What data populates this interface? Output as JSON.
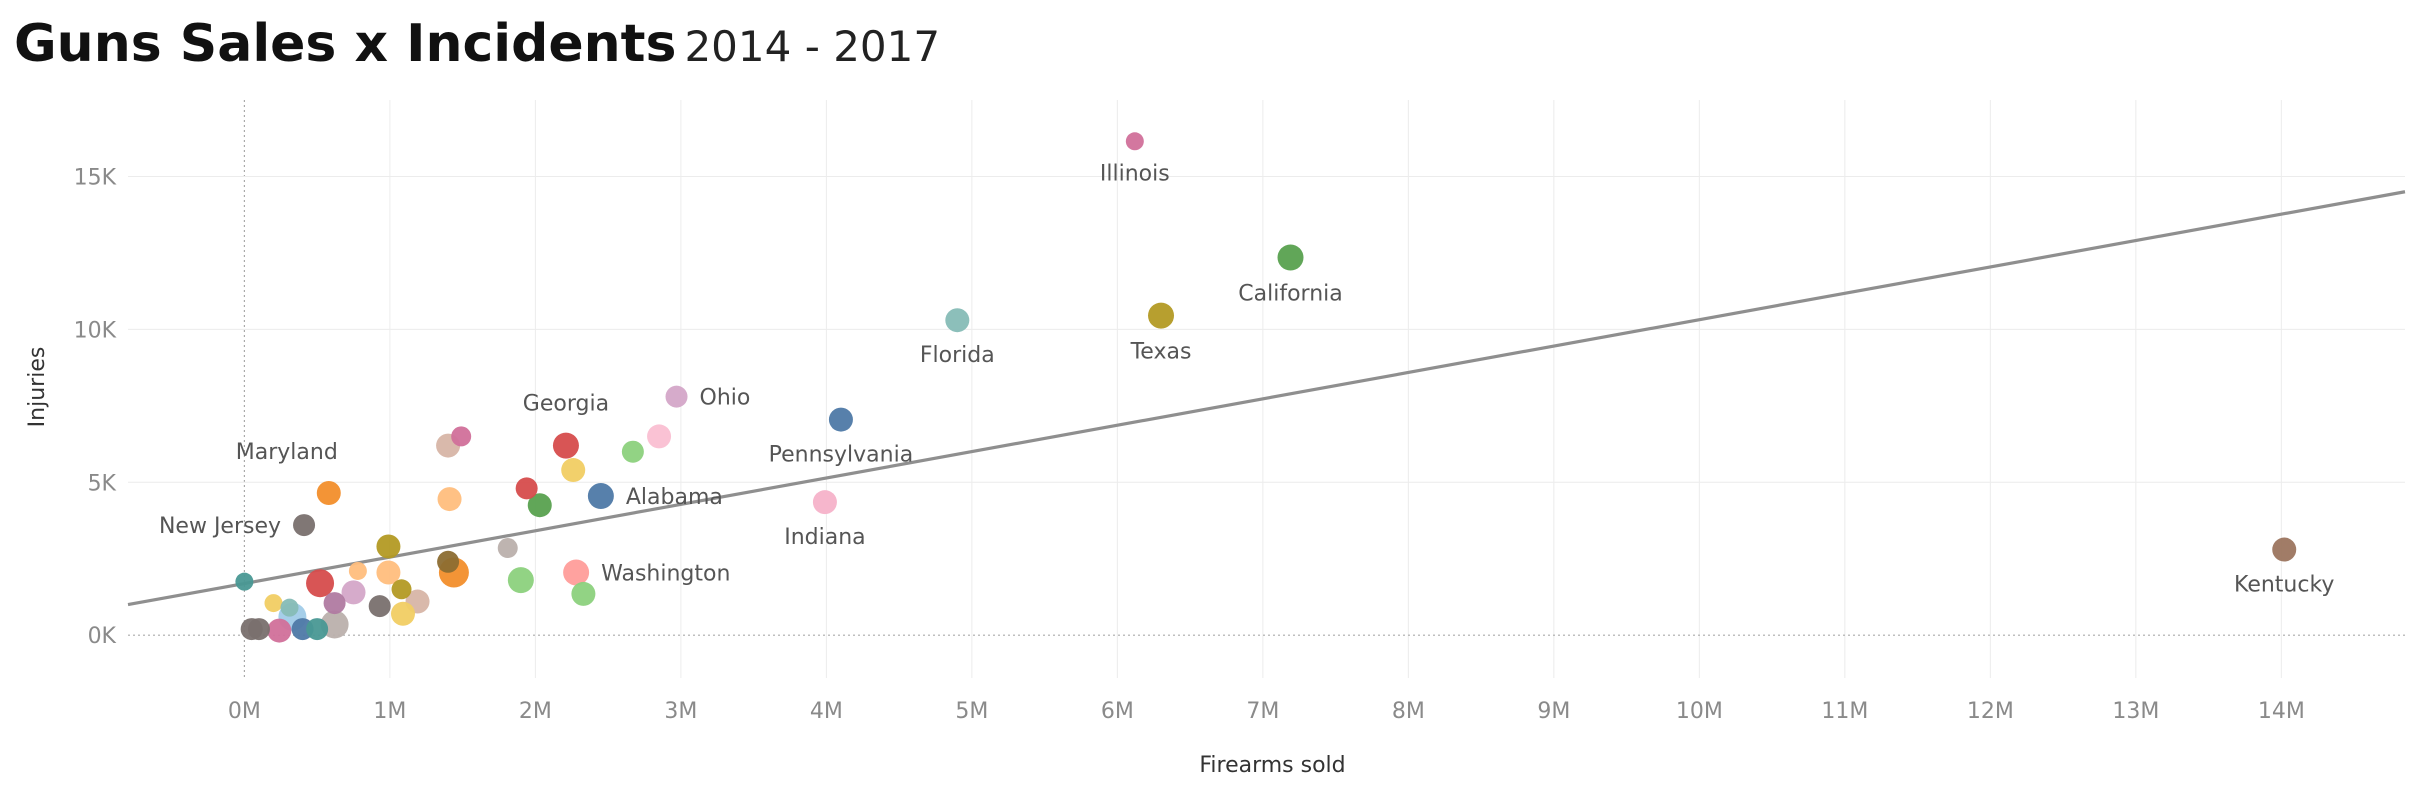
{
  "header": {
    "title": "Guns Sales x Incidents",
    "subtitle": "2014 - 2017"
  },
  "chart_data": {
    "type": "scatter",
    "title": "Guns Sales x Incidents",
    "subtitle": "2014 - 2017",
    "xlabel": "Firearms sold",
    "ylabel": "Injuries",
    "xlim": [
      -0.8,
      14.85
    ],
    "ylim": [
      -1400,
      17500
    ],
    "x_unit": "M",
    "y_unit": "K",
    "x_ticks": [
      {
        "value": 0,
        "label": "0M"
      },
      {
        "value": 1,
        "label": "1M"
      },
      {
        "value": 2,
        "label": "2M"
      },
      {
        "value": 3,
        "label": "3M"
      },
      {
        "value": 4,
        "label": "4M"
      },
      {
        "value": 5,
        "label": "5M"
      },
      {
        "value": 6,
        "label": "6M"
      },
      {
        "value": 7,
        "label": "7M"
      },
      {
        "value": 8,
        "label": "8M"
      },
      {
        "value": 9,
        "label": "9M"
      },
      {
        "value": 10,
        "label": "10M"
      },
      {
        "value": 11,
        "label": "11M"
      },
      {
        "value": 12,
        "label": "12M"
      },
      {
        "value": 13,
        "label": "13M"
      },
      {
        "value": 14,
        "label": "14M"
      }
    ],
    "y_ticks": [
      {
        "value": 0,
        "label": "0K"
      },
      {
        "value": 5000,
        "label": "5K"
      },
      {
        "value": 10000,
        "label": "10K"
      },
      {
        "value": 15000,
        "label": "15K"
      }
    ],
    "grid": true,
    "trend_line": {
      "x": [
        -0.8,
        14.85
      ],
      "y": [
        1000,
        14500
      ],
      "color": "#8f8f8f"
    },
    "points": [
      {
        "label": "Illinois",
        "x": 6.12,
        "y": 16150,
        "size": 9,
        "color": "#d1709a",
        "label_pos": "below"
      },
      {
        "label": "California",
        "x": 7.19,
        "y": 12350,
        "size": 13,
        "color": "#59a14f",
        "label_pos": "below"
      },
      {
        "label": "Texas",
        "x": 6.3,
        "y": 10450,
        "size": 13,
        "color": "#b39a24",
        "label_pos": "below"
      },
      {
        "label": "Florida",
        "x": 4.9,
        "y": 10300,
        "size": 12,
        "color": "#86bcb6",
        "label_pos": "below"
      },
      {
        "label": "Ohio",
        "x": 2.97,
        "y": 7800,
        "size": 11,
        "color": "#d4a6c8",
        "label_pos": "right"
      },
      {
        "label": "Pennsylvania",
        "x": 4.1,
        "y": 7050,
        "size": 12,
        "color": "#4e79a7",
        "label_pos": "below"
      },
      {
        "label": "Georgia",
        "x": 2.21,
        "y": 6200,
        "size": 13,
        "color": "#d64c4c",
        "label_pos": "above"
      },
      {
        "label": "Alabama",
        "x": 2.45,
        "y": 4550,
        "size": 13,
        "color": "#4e79a7",
        "label_pos": "right"
      },
      {
        "label": "Indiana",
        "x": 3.99,
        "y": 4350,
        "size": 12,
        "color": "#f6b2c9",
        "label_pos": "below"
      },
      {
        "label": "Maryland",
        "x": 0.58,
        "y": 4650,
        "size": 12,
        "color": "#f28e2b",
        "label_pos": "above-left"
      },
      {
        "label": "New Jersey",
        "x": 0.41,
        "y": 3600,
        "size": 11,
        "color": "#79706e",
        "label_pos": "left"
      },
      {
        "label": "Washington",
        "x": 2.28,
        "y": 2050,
        "size": 13,
        "color": "#ff9d9a",
        "label_pos": "right"
      },
      {
        "label": "Kentucky",
        "x": 14.02,
        "y": 2800,
        "size": 12,
        "color": "#9c755f",
        "label_pos": "below"
      },
      {
        "label": "",
        "x": 1.49,
        "y": 6500,
        "size": 10,
        "color": "#d1709a"
      },
      {
        "label": "",
        "x": 1.4,
        "y": 6200,
        "size": 12,
        "color": "#d7b5a6"
      },
      {
        "label": "",
        "x": 1.41,
        "y": 4450,
        "size": 12,
        "color": "#ffbe7d"
      },
      {
        "label": "",
        "x": 2.67,
        "y": 6000,
        "size": 11,
        "color": "#8cd17d"
      },
      {
        "label": "",
        "x": 2.85,
        "y": 6500,
        "size": 12,
        "color": "#fabfd2"
      },
      {
        "label": "",
        "x": 2.26,
        "y": 5400,
        "size": 12,
        "color": "#f1ce63"
      },
      {
        "label": "",
        "x": 1.94,
        "y": 4800,
        "size": 11,
        "color": "#d64c4c"
      },
      {
        "label": "",
        "x": 2.03,
        "y": 4250,
        "size": 12,
        "color": "#59a14f"
      },
      {
        "label": "",
        "x": 1.81,
        "y": 2850,
        "size": 10,
        "color": "#bab0ac"
      },
      {
        "label": "",
        "x": 0.99,
        "y": 2900,
        "size": 12,
        "color": "#b39a24"
      },
      {
        "label": "",
        "x": 1.4,
        "y": 2400,
        "size": 11,
        "color": "#8c6d31"
      },
      {
        "label": "",
        "x": 1.44,
        "y": 2050,
        "size": 15,
        "color": "#f28e2b"
      },
      {
        "label": "",
        "x": 1.9,
        "y": 1800,
        "size": 13,
        "color": "#8cd17d"
      },
      {
        "label": "",
        "x": 2.33,
        "y": 1350,
        "size": 12,
        "color": "#8cd17d"
      },
      {
        "label": "",
        "x": 0.78,
        "y": 2100,
        "size": 9,
        "color": "#ffbe7d"
      },
      {
        "label": "",
        "x": 0.99,
        "y": 2050,
        "size": 12,
        "color": "#ffbe7d"
      },
      {
        "label": "",
        "x": 0.0,
        "y": 1750,
        "size": 9,
        "color": "#499894"
      },
      {
        "label": "",
        "x": 0.52,
        "y": 1700,
        "size": 14,
        "color": "#d64c4c"
      },
      {
        "label": "",
        "x": 0.75,
        "y": 1400,
        "size": 12,
        "color": "#d4a6c8"
      },
      {
        "label": "",
        "x": 1.08,
        "y": 1500,
        "size": 10,
        "color": "#b39a24"
      },
      {
        "label": "",
        "x": 1.19,
        "y": 1100,
        "size": 12,
        "color": "#d7b5a6"
      },
      {
        "label": "",
        "x": 0.93,
        "y": 950,
        "size": 11,
        "color": "#79706e"
      },
      {
        "label": "",
        "x": 1.09,
        "y": 700,
        "size": 12,
        "color": "#f1ce63"
      },
      {
        "label": "",
        "x": 0.2,
        "y": 1050,
        "size": 9,
        "color": "#f1ce63"
      },
      {
        "label": "",
        "x": 0.62,
        "y": 1050,
        "size": 11,
        "color": "#b07aa1"
      },
      {
        "label": "",
        "x": 0.31,
        "y": 900,
        "size": 9,
        "color": "#86bcb6"
      },
      {
        "label": "",
        "x": 0.33,
        "y": 600,
        "size": 14,
        "color": "#a0cbe8"
      },
      {
        "label": "",
        "x": 0.24,
        "y": 150,
        "size": 12,
        "color": "#d1709a"
      },
      {
        "label": "",
        "x": 0.4,
        "y": 200,
        "size": 11,
        "color": "#4e79a7"
      },
      {
        "label": "",
        "x": 0.5,
        "y": 200,
        "size": 11,
        "color": "#499894"
      },
      {
        "label": "",
        "x": 0.62,
        "y": 350,
        "size": 14,
        "color": "#bab0ac"
      },
      {
        "label": "",
        "x": 0.1,
        "y": 200,
        "size": 11,
        "color": "#79706e"
      },
      {
        "label": "",
        "x": 0.05,
        "y": 200,
        "size": 11,
        "color": "#79706e"
      }
    ]
  }
}
